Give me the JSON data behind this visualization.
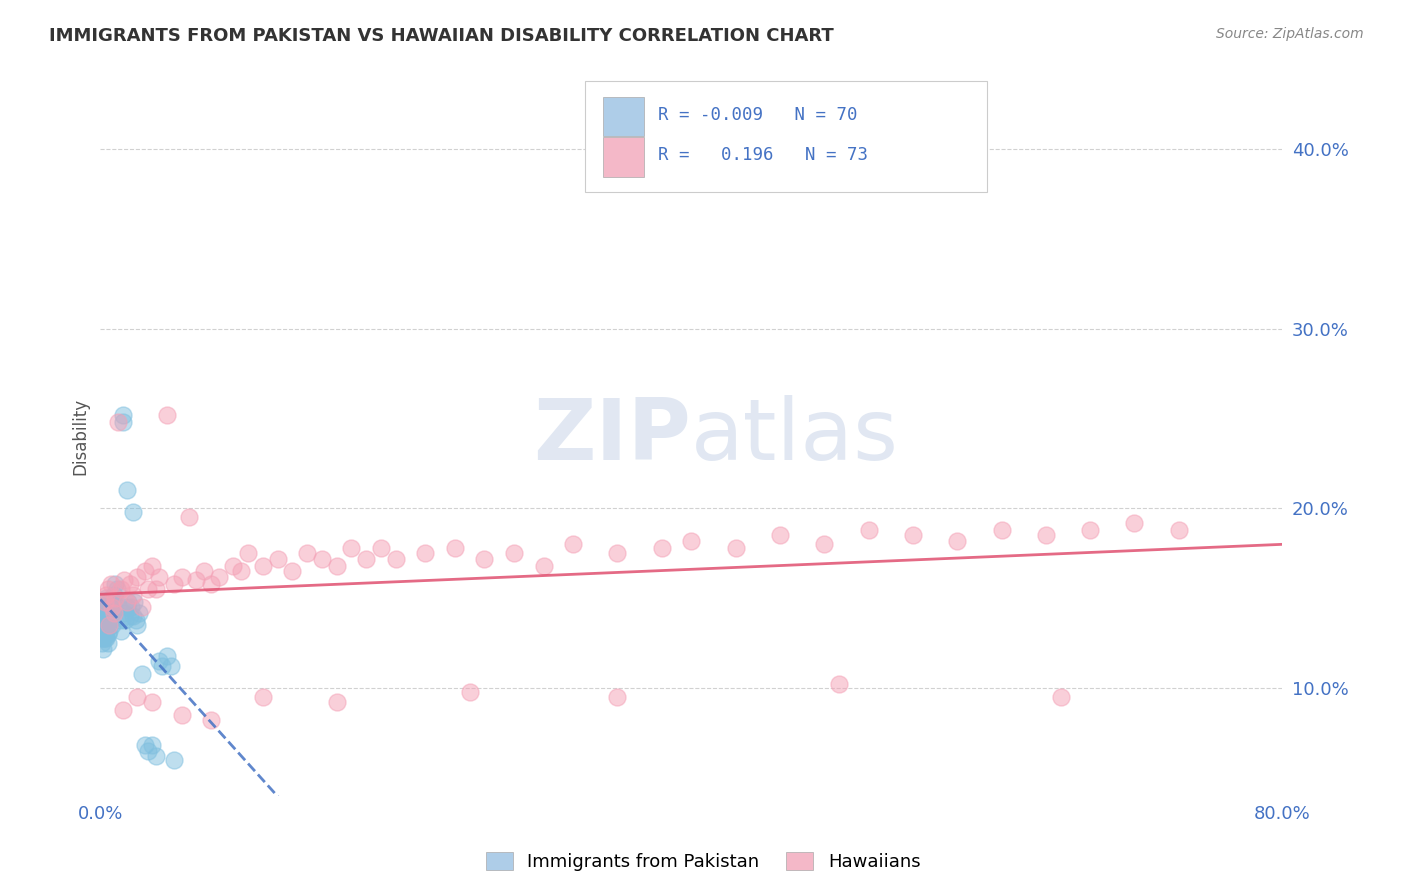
{
  "title": "IMMIGRANTS FROM PAKISTAN VS HAWAIIAN DISABILITY CORRELATION CHART",
  "source": "Source: ZipAtlas.com",
  "ylabel": "Disability",
  "xlim": [
    0.0,
    0.8
  ],
  "ylim": [
    0.04,
    0.44
  ],
  "yticks": [
    0.1,
    0.2,
    0.3,
    0.4
  ],
  "ytick_labels": [
    "10.0%",
    "20.0%",
    "30.0%",
    "40.0%"
  ],
  "xticks": [
    0.0,
    0.8
  ],
  "xtick_labels": [
    "0.0%",
    "80.0%"
  ],
  "color_blue": "#7fbfdf",
  "color_pink": "#f4a0b5",
  "color_blue_line": "#4472C4",
  "color_pink_line": "#e05070",
  "watermark_zip": "ZIP",
  "watermark_atlas": "atlas",
  "blue_scatter_x": [
    0.001,
    0.001,
    0.001,
    0.001,
    0.001,
    0.002,
    0.002,
    0.002,
    0.002,
    0.002,
    0.002,
    0.002,
    0.003,
    0.003,
    0.003,
    0.003,
    0.003,
    0.003,
    0.004,
    0.004,
    0.004,
    0.004,
    0.004,
    0.005,
    0.005,
    0.005,
    0.005,
    0.006,
    0.006,
    0.006,
    0.006,
    0.007,
    0.007,
    0.007,
    0.008,
    0.008,
    0.008,
    0.009,
    0.009,
    0.01,
    0.01,
    0.011,
    0.012,
    0.013,
    0.014,
    0.015,
    0.015,
    0.016,
    0.017,
    0.018,
    0.019,
    0.02,
    0.021,
    0.022,
    0.023,
    0.024,
    0.025,
    0.026,
    0.028,
    0.03,
    0.032,
    0.035,
    0.038,
    0.04,
    0.042,
    0.045,
    0.048,
    0.05,
    0.022,
    0.018
  ],
  "blue_scatter_y": [
    0.135,
    0.14,
    0.145,
    0.128,
    0.125,
    0.138,
    0.132,
    0.142,
    0.148,
    0.135,
    0.128,
    0.122,
    0.138,
    0.132,
    0.128,
    0.145,
    0.142,
    0.13,
    0.15,
    0.142,
    0.138,
    0.132,
    0.128,
    0.145,
    0.138,
    0.13,
    0.125,
    0.148,
    0.142,
    0.138,
    0.132,
    0.15,
    0.145,
    0.138,
    0.148,
    0.142,
    0.135,
    0.152,
    0.145,
    0.158,
    0.15,
    0.155,
    0.145,
    0.138,
    0.132,
    0.252,
    0.248,
    0.142,
    0.138,
    0.145,
    0.148,
    0.14,
    0.145,
    0.14,
    0.148,
    0.138,
    0.135,
    0.142,
    0.108,
    0.068,
    0.065,
    0.068,
    0.062,
    0.115,
    0.112,
    0.118,
    0.112,
    0.06,
    0.198,
    0.21
  ],
  "pink_scatter_x": [
    0.003,
    0.004,
    0.005,
    0.007,
    0.008,
    0.01,
    0.012,
    0.014,
    0.016,
    0.018,
    0.02,
    0.022,
    0.025,
    0.028,
    0.03,
    0.032,
    0.035,
    0.038,
    0.04,
    0.045,
    0.05,
    0.055,
    0.06,
    0.065,
    0.07,
    0.075,
    0.08,
    0.09,
    0.095,
    0.1,
    0.11,
    0.12,
    0.13,
    0.14,
    0.15,
    0.16,
    0.17,
    0.18,
    0.19,
    0.2,
    0.22,
    0.24,
    0.26,
    0.28,
    0.3,
    0.32,
    0.35,
    0.38,
    0.4,
    0.43,
    0.46,
    0.49,
    0.52,
    0.55,
    0.58,
    0.61,
    0.64,
    0.67,
    0.7,
    0.73,
    0.006,
    0.009,
    0.015,
    0.025,
    0.035,
    0.055,
    0.075,
    0.11,
    0.16,
    0.25,
    0.35,
    0.5,
    0.65
  ],
  "pink_scatter_y": [
    0.148,
    0.152,
    0.155,
    0.158,
    0.145,
    0.15,
    0.248,
    0.155,
    0.16,
    0.148,
    0.158,
    0.152,
    0.162,
    0.145,
    0.165,
    0.155,
    0.168,
    0.155,
    0.162,
    0.252,
    0.158,
    0.162,
    0.195,
    0.16,
    0.165,
    0.158,
    0.162,
    0.168,
    0.165,
    0.175,
    0.168,
    0.172,
    0.165,
    0.175,
    0.172,
    0.168,
    0.178,
    0.172,
    0.178,
    0.172,
    0.175,
    0.178,
    0.172,
    0.175,
    0.168,
    0.18,
    0.175,
    0.178,
    0.182,
    0.178,
    0.185,
    0.18,
    0.188,
    0.185,
    0.182,
    0.188,
    0.185,
    0.188,
    0.192,
    0.188,
    0.135,
    0.142,
    0.088,
    0.095,
    0.092,
    0.085,
    0.082,
    0.095,
    0.092,
    0.098,
    0.095,
    0.102,
    0.095
  ]
}
